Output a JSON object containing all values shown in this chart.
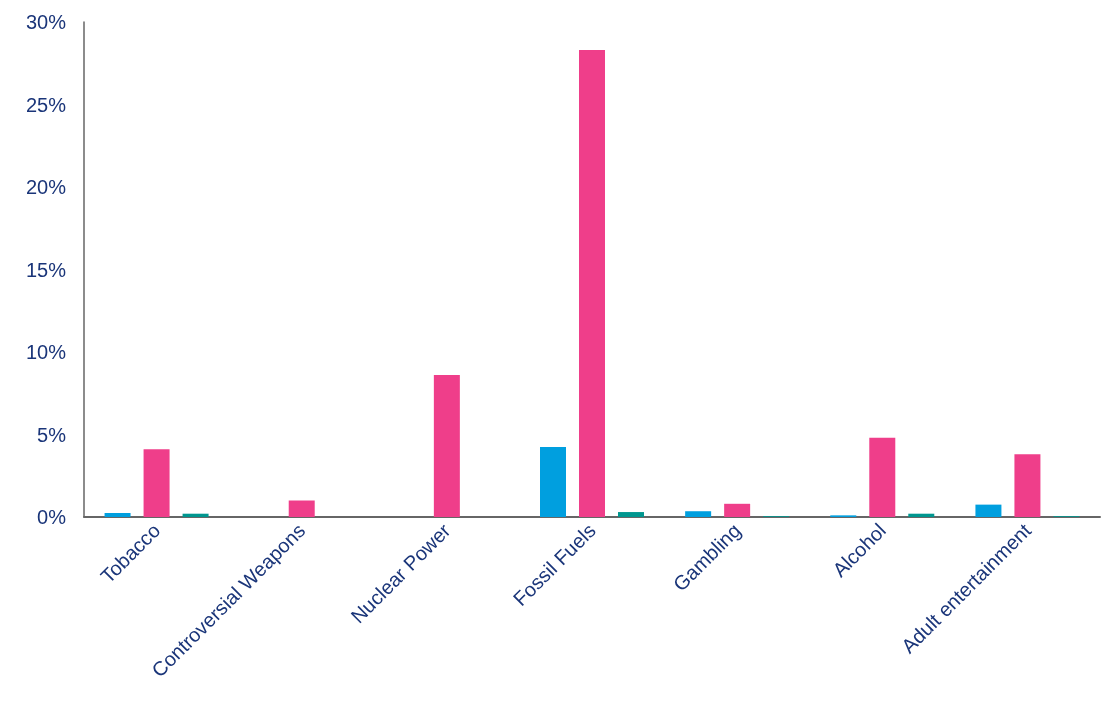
{
  "chart_data": {
    "type": "bar",
    "categories": [
      "Tobacco",
      "Controversial Weapons",
      "Nuclear Power",
      "Fossil Fuels",
      "Gambling",
      "Alcohol",
      "Adult entertainment"
    ],
    "series": [
      {
        "color": "#009fdf",
        "values": [
          0.25,
          0,
          0,
          4.25,
          0.35,
          0.1,
          0.75
        ]
      },
      {
        "color": "#ef3e8a",
        "values": [
          4.1,
          1.0,
          8.6,
          28.3,
          0.8,
          4.8,
          3.8
        ]
      },
      {
        "color": "#00968f",
        "values": [
          0.2,
          0,
          0,
          0.3,
          0.05,
          0.2,
          0.05
        ]
      }
    ],
    "ylim": [
      0,
      30
    ],
    "yticks": [
      {
        "value": 0,
        "label": "0%"
      },
      {
        "value": 5,
        "label": "5%"
      },
      {
        "value": 10,
        "label": "10%"
      },
      {
        "value": 15,
        "label": "15%"
      },
      {
        "value": 20,
        "label": "20%"
      },
      {
        "value": 25,
        "label": "25%"
      },
      {
        "value": 30,
        "label": "30%"
      }
    ],
    "grid": false
  }
}
